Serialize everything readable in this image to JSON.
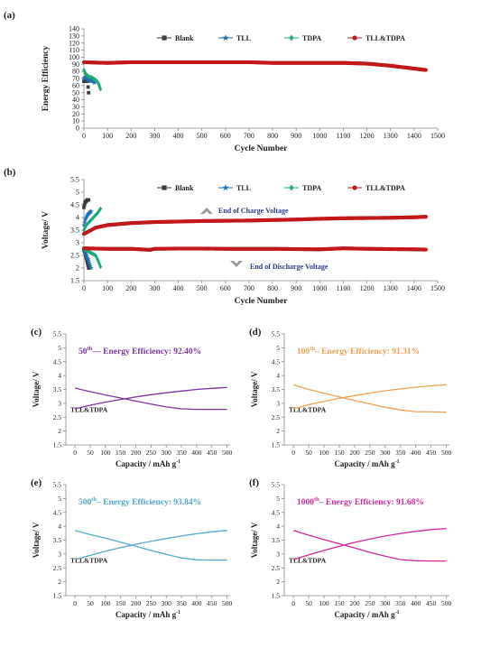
{
  "colors": {
    "blank": "#3d3d3d",
    "tll": "#1f6fb4",
    "tdpa": "#1faa78",
    "tll_tdpa": "#c0181c",
    "c": "#7b36a3",
    "d": "#f0a053",
    "e": "#52a8cf",
    "f": "#cc2b9a",
    "arrow": "#9a9a9a",
    "annotation": "#2e3b84"
  },
  "chart_data": [
    {
      "panel": "(a)",
      "type": "scatter",
      "xlabel": "Cycle Number",
      "ylabel": "Energy Efficiency",
      "xlim": [
        0,
        1500
      ],
      "ylim": [
        0,
        140
      ],
      "xticks": [
        0,
        100,
        200,
        300,
        400,
        500,
        600,
        700,
        800,
        900,
        1000,
        1100,
        1200,
        1300,
        1400,
        1500
      ],
      "yticks": [
        0,
        10,
        20,
        30,
        40,
        50,
        60,
        70,
        80,
        90,
        100,
        110,
        120,
        130,
        140
      ],
      "legend": [
        "Blank",
        "TLL",
        "TDPA",
        "TLL&TDPA"
      ],
      "legend_position": "top",
      "series": [
        {
          "name": "Blank",
          "color_key": "blank",
          "marker": "square",
          "x": [
            0,
            5,
            10,
            15,
            20
          ],
          "y": [
            66,
            67,
            68,
            66,
            50
          ]
        },
        {
          "name": "TLL",
          "color_key": "tll",
          "marker": "star",
          "x": [
            0,
            5,
            10,
            15,
            20,
            25,
            30,
            35,
            40,
            45
          ],
          "y": [
            70,
            72,
            71,
            69,
            68,
            67,
            66,
            68,
            66,
            64
          ]
        },
        {
          "name": "TDPA",
          "color_key": "tdpa",
          "marker": "diamond",
          "x": [
            0,
            5,
            10,
            15,
            20,
            25,
            30,
            35,
            40,
            45,
            50,
            55,
            60,
            65,
            70
          ],
          "y": [
            82,
            78,
            76,
            74,
            73,
            72,
            72,
            71,
            70,
            69,
            68,
            66,
            64,
            60,
            55
          ]
        },
        {
          "name": "TLL&TDPA",
          "color_key": "tll_tdpa",
          "marker": "circle",
          "x": [
            0,
            100,
            200,
            300,
            400,
            500,
            600,
            700,
            800,
            900,
            1000,
            1100,
            1200,
            1300,
            1350,
            1400,
            1450
          ],
          "y": [
            93,
            92,
            93,
            93,
            93,
            93,
            93,
            93,
            92,
            92,
            92,
            92,
            91,
            88,
            86,
            84,
            82
          ]
        }
      ]
    },
    {
      "panel": "(b)",
      "type": "scatter",
      "xlabel": "Cycle Number",
      "ylabel": "Voltage/ V",
      "xlim": [
        0,
        1500
      ],
      "ylim": [
        1.5,
        5.5
      ],
      "xticks": [
        0,
        100,
        200,
        300,
        400,
        500,
        600,
        700,
        800,
        900,
        1000,
        1100,
        1200,
        1300,
        1400,
        1500
      ],
      "yticks": [
        "1.5",
        "2",
        "2.5",
        "3",
        "3.5",
        "4",
        "4.5",
        "5",
        "5.5"
      ],
      "legend": [
        "Blank",
        "TLL",
        "TDPA",
        "TLL&TDPA"
      ],
      "legend_position": "top",
      "annotations": [
        "End of Charge Voltage",
        "End of Discharge Voltage"
      ],
      "series": [
        {
          "name": "Blank",
          "group": "charge",
          "color_key": "blank",
          "marker": "square",
          "x": [
            0,
            5,
            10,
            15,
            20
          ],
          "y": [
            4.4,
            4.6,
            4.65,
            4.7,
            4.7
          ]
        },
        {
          "name": "Blank",
          "group": "discharge",
          "color_key": "blank",
          "marker": "square",
          "x": [
            0,
            5,
            10,
            15,
            20
          ],
          "y": [
            2.7,
            2.6,
            2.4,
            2.2,
            2.0
          ]
        },
        {
          "name": "TLL",
          "group": "charge",
          "color_key": "tll",
          "marker": "star",
          "x": [
            0,
            5,
            10,
            15,
            20,
            25,
            30
          ],
          "y": [
            3.7,
            3.9,
            4.0,
            4.1,
            4.15,
            4.2,
            4.25
          ]
        },
        {
          "name": "TLL",
          "group": "discharge",
          "color_key": "tll",
          "marker": "star",
          "x": [
            0,
            5,
            10,
            15,
            20,
            25,
            30
          ],
          "y": [
            2.7,
            2.6,
            2.5,
            2.4,
            2.3,
            2.15,
            2.0
          ]
        },
        {
          "name": "TDPA",
          "group": "charge",
          "color_key": "tdpa",
          "marker": "diamond",
          "x": [
            0,
            10,
            20,
            30,
            40,
            50,
            60,
            70
          ],
          "y": [
            3.5,
            3.7,
            3.8,
            3.9,
            4.0,
            4.1,
            4.2,
            4.35
          ]
        },
        {
          "name": "TDPA",
          "group": "discharge",
          "color_key": "tdpa",
          "marker": "diamond",
          "x": [
            0,
            10,
            20,
            30,
            40,
            50,
            60,
            70
          ],
          "y": [
            2.75,
            2.7,
            2.65,
            2.6,
            2.55,
            2.5,
            2.3,
            2.05
          ]
        },
        {
          "name": "TLL&TDPA",
          "group": "charge",
          "color_key": "tll_tdpa",
          "marker": "circle",
          "x": [
            0,
            50,
            100,
            200,
            300,
            400,
            500,
            600,
            700,
            800,
            900,
            1000,
            1100,
            1200,
            1300,
            1400,
            1450
          ],
          "y": [
            3.35,
            3.6,
            3.7,
            3.78,
            3.82,
            3.84,
            3.86,
            3.87,
            3.88,
            3.9,
            3.92,
            3.95,
            3.97,
            3.98,
            3.99,
            4.01,
            4.03
          ]
        },
        {
          "name": "TLL&TDPA",
          "group": "discharge",
          "color_key": "tll_tdpa",
          "marker": "circle",
          "x": [
            0,
            100,
            200,
            280,
            300,
            400,
            500,
            600,
            700,
            800,
            900,
            1000,
            1100,
            1200,
            1300,
            1400,
            1450
          ],
          "y": [
            2.78,
            2.76,
            2.76,
            2.72,
            2.76,
            2.77,
            2.77,
            2.76,
            2.76,
            2.76,
            2.75,
            2.74,
            2.78,
            2.76,
            2.75,
            2.74,
            2.73
          ]
        }
      ]
    },
    {
      "panel": "(c)",
      "type": "line",
      "title": "50th— Energy Efficiency: 92.40%",
      "title_base": "50",
      "title_sup": "th",
      "title_rest": "— Energy Efficiency: 92.40%",
      "inner_label": "TLL&TDPA",
      "color_key": "c",
      "xlabel": "Capacity / mAh g",
      "xlabel_sup": "-1",
      "ylabel": "Voltage/ V",
      "xlim": [
        -30,
        510
      ],
      "ylim": [
        1.5,
        5.5
      ],
      "xticks": [
        0,
        50,
        100,
        150,
        200,
        250,
        300,
        350,
        400,
        450,
        500
      ],
      "yticks": [
        "1.5",
        "2",
        "2.5",
        "3",
        "3.5",
        "4",
        "4.5",
        "5",
        "5.5"
      ],
      "series": [
        {
          "name": "charge",
          "x": [
            0,
            50,
            100,
            150,
            200,
            250,
            300,
            350,
            400,
            450,
            500
          ],
          "y": [
            2.8,
            2.93,
            3.04,
            3.14,
            3.23,
            3.31,
            3.38,
            3.44,
            3.5,
            3.54,
            3.57
          ]
        },
        {
          "name": "discharge",
          "x": [
            0,
            50,
            100,
            150,
            200,
            250,
            300,
            350,
            400,
            450,
            500
          ],
          "y": [
            3.55,
            3.42,
            3.3,
            3.19,
            3.08,
            2.97,
            2.87,
            2.8,
            2.78,
            2.78,
            2.78
          ]
        }
      ]
    },
    {
      "panel": "(d)",
      "type": "line",
      "title": "100th– Energy Efficiency: 91.31%",
      "title_base": "100",
      "title_sup": "th",
      "title_rest": "– Energy Efficiency: 91.31%",
      "inner_label": "TLL&TDPA",
      "color_key": "d",
      "xlabel": "Capacity / mAh g",
      "xlabel_sup": "-1",
      "ylabel": "Voltage/ V",
      "xlim": [
        -30,
        510
      ],
      "ylim": [
        1.5,
        5.5
      ],
      "xticks": [
        0,
        50,
        100,
        150,
        200,
        250,
        300,
        350,
        400,
        450,
        500
      ],
      "yticks": [
        "1.5",
        "2",
        "2.5",
        "3",
        "3.5",
        "4",
        "4.5",
        "5",
        "5.5"
      ],
      "series": [
        {
          "name": "charge",
          "x": [
            0,
            50,
            100,
            150,
            200,
            250,
            300,
            350,
            400,
            450,
            500
          ],
          "y": [
            2.8,
            2.95,
            3.07,
            3.18,
            3.28,
            3.37,
            3.45,
            3.52,
            3.58,
            3.63,
            3.67
          ]
        },
        {
          "name": "discharge",
          "x": [
            0,
            50,
            100,
            150,
            200,
            250,
            300,
            350,
            400,
            450,
            500
          ],
          "y": [
            3.67,
            3.5,
            3.36,
            3.23,
            3.1,
            2.98,
            2.86,
            2.76,
            2.7,
            2.69,
            2.68
          ]
        }
      ]
    },
    {
      "panel": "(e)",
      "type": "line",
      "title": "500th– Energy Efficiency: 93.84%",
      "title_base": "500",
      "title_sup": "th",
      "title_rest": "– Energy Efficiency: 93.84%",
      "inner_label": "TLL&TDPA",
      "color_key": "e",
      "xlabel": "Capacity / mAh g",
      "xlabel_sup": "-1",
      "ylabel": "Voltage/ V",
      "xlim": [
        -30,
        510
      ],
      "ylim": [
        1.5,
        5.5
      ],
      "xticks": [
        0,
        50,
        100,
        150,
        200,
        250,
        300,
        350,
        400,
        450,
        500
      ],
      "yticks": [
        "1.5",
        "2",
        "2.5",
        "3",
        "3.5",
        "4",
        "4.5",
        "5",
        "5.5"
      ],
      "series": [
        {
          "name": "charge",
          "x": [
            0,
            50,
            100,
            150,
            200,
            250,
            300,
            350,
            400,
            450,
            500
          ],
          "y": [
            2.8,
            2.95,
            3.1,
            3.23,
            3.35,
            3.46,
            3.56,
            3.65,
            3.73,
            3.8,
            3.85
          ]
        },
        {
          "name": "discharge",
          "x": [
            0,
            50,
            100,
            150,
            200,
            250,
            300,
            350,
            400,
            450,
            500
          ],
          "y": [
            3.85,
            3.7,
            3.57,
            3.43,
            3.28,
            3.13,
            2.99,
            2.86,
            2.79,
            2.78,
            2.78
          ]
        }
      ]
    },
    {
      "panel": "(f)",
      "type": "line",
      "title": "1000th– Energy Efficiency: 91.68%",
      "title_base": "1000",
      "title_sup": "th",
      "title_rest": "– Energy Efficiency: 91.68%",
      "inner_label": "TLL&TDPA",
      "color_key": "f",
      "xlabel": "Capacity / mAh g",
      "xlabel_sup": "-1",
      "ylabel": "Voltage/ V",
      "xlim": [
        -30,
        510
      ],
      "ylim": [
        1.5,
        5.5
      ],
      "xticks": [
        0,
        50,
        100,
        150,
        200,
        250,
        300,
        350,
        400,
        450,
        500
      ],
      "yticks": [
        "1.5",
        "2",
        "2.5",
        "3",
        "3.5",
        "4",
        "4.5",
        "5",
        "5.5"
      ],
      "series": [
        {
          "name": "charge",
          "x": [
            0,
            50,
            100,
            150,
            200,
            250,
            300,
            350,
            400,
            450,
            500
          ],
          "y": [
            2.8,
            2.97,
            3.13,
            3.28,
            3.42,
            3.54,
            3.65,
            3.74,
            3.82,
            3.88,
            3.92
          ]
        },
        {
          "name": "discharge",
          "x": [
            0,
            50,
            100,
            150,
            200,
            250,
            300,
            350,
            400,
            450,
            500
          ],
          "y": [
            3.85,
            3.68,
            3.52,
            3.37,
            3.22,
            3.06,
            2.92,
            2.8,
            2.76,
            2.75,
            2.75
          ]
        }
      ]
    }
  ]
}
